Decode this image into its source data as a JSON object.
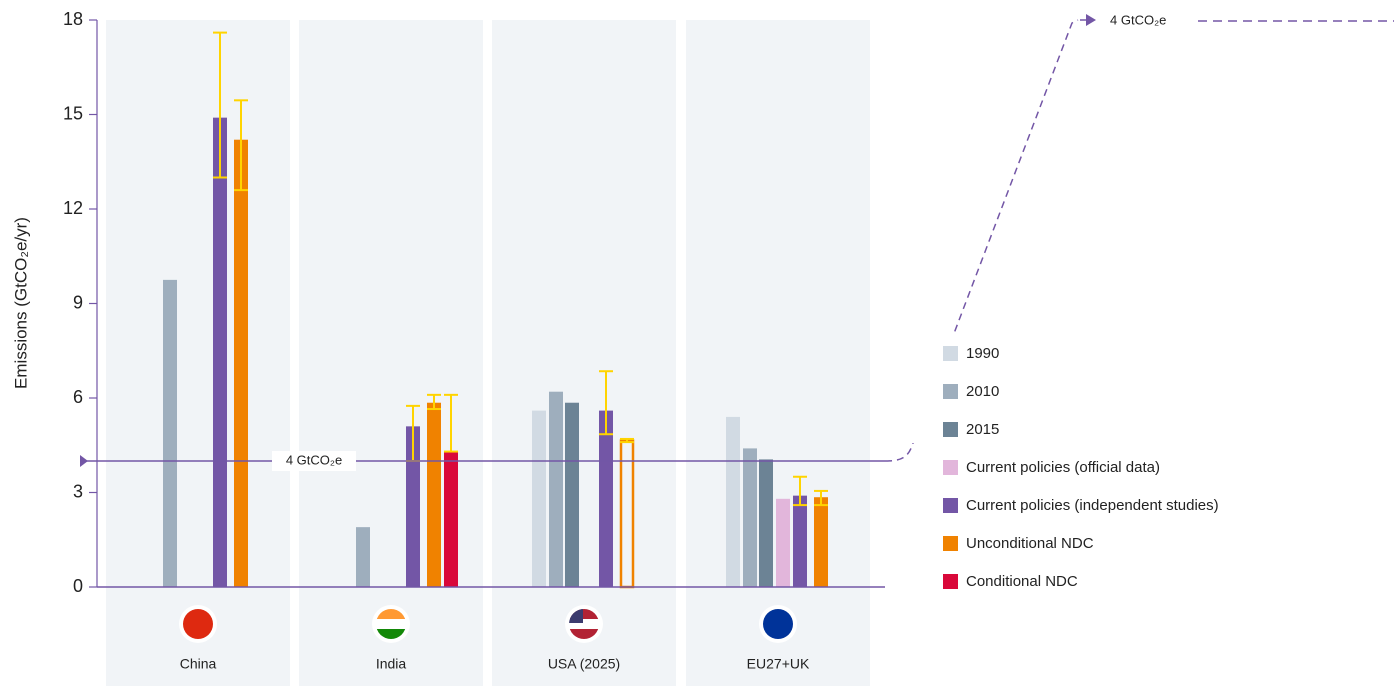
{
  "chart_data": {
    "type": "bar",
    "y_label": "Emissions (GtCO₂e/yr)",
    "categories": [
      "China",
      "India",
      "USA (2025)",
      "EU27+UK"
    ],
    "ylim": [
      0,
      18
    ],
    "yticks": [
      0,
      3,
      6,
      9,
      12,
      15,
      18
    ],
    "series": [
      {
        "name": "1990",
        "color": "#d1dae3",
        "values": [
          null,
          null,
          5.6,
          5.4
        ]
      },
      {
        "name": "2010",
        "color": "#9eaebd",
        "values": [
          9.75,
          1.9,
          6.2,
          4.4
        ]
      },
      {
        "name": "2015",
        "color": "#6c8395",
        "values": [
          null,
          null,
          5.85,
          4.05
        ]
      },
      {
        "name": "Current policies (official data)",
        "color": "#e2b6db",
        "values": [
          null,
          null,
          null,
          2.8
        ]
      },
      {
        "name": "Current policies (independent studies)",
        "color": "#7356a6",
        "values": [
          14.9,
          5.1,
          5.6,
          2.9
        ],
        "low": [
          13.0,
          4.0,
          4.85,
          2.6
        ],
        "high": [
          17.6,
          5.75,
          6.85,
          3.5
        ]
      },
      {
        "name": "Unconditional NDC",
        "color": "#f08200",
        "values": [
          14.2,
          5.85,
          4.65,
          2.85
        ],
        "low": [
          12.6,
          5.65,
          4.6,
          2.6
        ],
        "high": [
          15.45,
          6.1,
          4.7,
          3.05
        ],
        "hollow": [
          false,
          false,
          true,
          false
        ]
      },
      {
        "name": "Conditional NDC",
        "color": "#d9083a",
        "values": [
          null,
          4.3,
          null,
          null
        ],
        "low": [
          null,
          4.3,
          null,
          null
        ],
        "high": [
          null,
          6.1,
          null,
          null
        ]
      }
    ],
    "error_color": "#ffd400",
    "reference": {
      "value": 4,
      "label": "4 GtCO₂e",
      "callout": "4 GtCO₂e",
      "color": "#7356a6"
    }
  }
}
